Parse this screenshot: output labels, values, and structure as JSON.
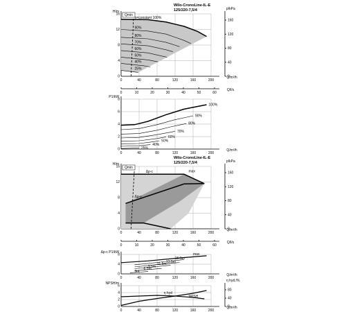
{
  "chart_data": [
    {
      "type": "line",
      "title": "Wilo-CronoLine-IL-E",
      "subtitle": "125/220-7,5/4",
      "xlabel": "Q/m³/h",
      "xlabel2": "Q/l/s",
      "ylabel": "H/m",
      "ylabel_right": "p/kPa",
      "xlim": [
        0,
        200
      ],
      "ylim": [
        0,
        16
      ],
      "xticks": [
        "0",
        "40",
        "80",
        "120",
        "160",
        "200"
      ],
      "yticks": [
        "0",
        "4",
        "8",
        "12",
        "16"
      ],
      "yticks_right": [
        "0",
        "40",
        "80",
        "120",
        "160"
      ],
      "x2ticks": [
        "0",
        "10",
        "20",
        "30",
        "40",
        "50",
        "60"
      ],
      "qmin_label": "Qmin",
      "qmin_line": [
        [
          22,
          0
        ],
        [
          28,
          16
        ]
      ],
      "region_fill": "#c8c8c8",
      "curve_color": "#000000",
      "series": [
        {
          "name": "n=constant 100%",
          "x": [
            0,
            60,
            100,
            140,
            170,
            190
          ],
          "y": [
            14.6,
            14.5,
            13.9,
            12.8,
            11.5,
            10.2
          ]
        },
        {
          "name": "90%",
          "x": [
            0,
            60,
            100,
            140,
            155
          ],
          "y": [
            12.0,
            11.6,
            10.8,
            9.2,
            8.4
          ]
        },
        {
          "name": "80%",
          "x": [
            0,
            60,
            100,
            130
          ],
          "y": [
            10.0,
            9.6,
            8.7,
            7.6
          ]
        },
        {
          "name": "70%",
          "x": [
            0,
            60,
            100,
            115
          ],
          "y": [
            8.3,
            7.8,
            6.8,
            6.3
          ]
        },
        {
          "name": "60%",
          "x": [
            0,
            60,
            90,
            102
          ],
          "y": [
            6.6,
            6.0,
            5.2,
            4.9
          ]
        },
        {
          "name": "50%",
          "x": [
            0,
            60,
            82
          ],
          "y": [
            4.9,
            4.2,
            3.7
          ]
        },
        {
          "name": "40%",
          "x": [
            0,
            50,
            65
          ],
          "y": [
            3.3,
            2.7,
            2.4
          ]
        },
        {
          "name": "25%",
          "x": [
            0,
            30,
            38
          ],
          "y": [
            1.5,
            1.1,
            1.0
          ]
        }
      ]
    },
    {
      "type": "line",
      "ylabel": "P1/kW",
      "xlabel": "Q/m³/h",
      "xlim": [
        0,
        200
      ],
      "ylim": [
        0,
        9
      ],
      "xticks": [
        "0",
        "40",
        "80",
        "120",
        "160",
        "200"
      ],
      "yticks": [
        "0",
        "2",
        "4",
        "6",
        "8"
      ],
      "series": [
        {
          "name": "100%",
          "x": [
            0,
            30,
            60,
            100,
            140,
            190
          ],
          "y": [
            4.3,
            4.4,
            5.0,
            6.2,
            7.2,
            8.0
          ]
        },
        {
          "name": "90%",
          "x": [
            0,
            40,
            80,
            120,
            160
          ],
          "y": [
            3.5,
            3.7,
            4.4,
            5.3,
            6.0
          ]
        },
        {
          "name": "80%",
          "x": [
            0,
            40,
            80,
            110,
            145
          ],
          "y": [
            2.7,
            2.8,
            3.4,
            4.0,
            4.6
          ]
        },
        {
          "name": "70%",
          "x": [
            0,
            40,
            80,
            120
          ],
          "y": [
            2.0,
            2.1,
            2.6,
            3.2
          ]
        },
        {
          "name": "60%",
          "x": [
            0,
            40,
            80,
            100
          ],
          "y": [
            1.4,
            1.5,
            1.9,
            2.2
          ]
        },
        {
          "name": "50%",
          "x": [
            0,
            40,
            70,
            85
          ],
          "y": [
            0.9,
            1.0,
            1.3,
            1.5
          ]
        },
        {
          "name": "40%",
          "x": [
            0,
            40,
            65
          ],
          "y": [
            0.5,
            0.6,
            0.8
          ]
        },
        {
          "name": "25%",
          "x": [
            0,
            20,
            40
          ],
          "y": [
            0.1,
            0.15,
            0.2
          ]
        }
      ]
    },
    {
      "type": "area",
      "title": "Wilo-CronoLine-IL-E",
      "subtitle": "125/220-7,5/4",
      "xlabel": "Q/m³/h",
      "xlabel2": "Q/l/s",
      "ylabel": "H/m",
      "ylabel_right": "p/kPa",
      "xlim": [
        0,
        200
      ],
      "ylim": [
        0,
        16
      ],
      "xticks": [
        "0",
        "40",
        "80",
        "120",
        "160",
        "200"
      ],
      "yticks": [
        "0",
        "4",
        "8",
        "12",
        "16"
      ],
      "yticks_right": [
        "0",
        "40",
        "80",
        "120",
        "160"
      ],
      "x2ticks": [
        "0",
        "10",
        "20",
        "30",
        "40",
        "50",
        "60"
      ],
      "qmin_label": "Qmin",
      "dp_c_label": "Δp-c",
      "dp_v_label": "Δp-v",
      "max_label": "max",
      "dp_c_region": [
        [
          0,
          14
        ],
        [
          140,
          14
        ],
        [
          185,
          11.6
        ],
        [
          150,
          4
        ],
        [
          110,
          0
        ],
        [
          0,
          0
        ]
      ],
      "dp_v_region": [
        [
          10,
          1.5
        ],
        [
          50,
          1.5
        ],
        [
          130,
          7
        ],
        [
          185,
          11.6
        ],
        [
          140,
          14
        ],
        [
          10,
          6.5
        ]
      ],
      "curves": {
        "dp_c_max": {
          "x": [
            0,
            140,
            185
          ],
          "y": [
            14,
            14,
            11.6
          ]
        },
        "min_line": {
          "x": [
            10,
            50,
            110
          ],
          "y": [
            1.5,
            1.5,
            0
          ]
        },
        "dp_v_max": {
          "x": [
            10,
            140,
            185
          ],
          "y": [
            6.5,
            11.5,
            11.6
          ]
        }
      }
    },
    {
      "type": "line",
      "ylabel": "Δp-c P1/kW",
      "xlabel": "Q/m³/h",
      "xlim": [
        0,
        200
      ],
      "ylim": [
        0,
        9
      ],
      "xticks": [
        "0",
        "40",
        "80",
        "120",
        "160",
        "200"
      ],
      "yticks": [
        "0",
        "4",
        "8"
      ],
      "annotations": [
        "max",
        "15.5m",
        "13.5m",
        "11.5m",
        "9.5m",
        "6.5m",
        "3m"
      ],
      "series": [
        {
          "name": "max",
          "x": [
            0,
            60,
            120,
            190
          ],
          "y": [
            5.2,
            6.0,
            7.2,
            8.4
          ]
        },
        {
          "name": "15.5m",
          "x": [
            30,
            80,
            140
          ],
          "y": [
            4.2,
            5.3,
            6.6
          ]
        },
        {
          "name": "13.5m",
          "x": [
            30,
            80,
            130
          ],
          "y": [
            3.2,
            4.3,
            5.3
          ]
        },
        {
          "name": "11.5m",
          "x": [
            30,
            70,
            110
          ],
          "y": [
            2.4,
            3.2,
            4.0
          ]
        },
        {
          "name": "6.5m",
          "x": [
            30,
            60,
            90
          ],
          "y": [
            1.4,
            2.0,
            2.5
          ]
        },
        {
          "name": "3m",
          "x": [
            20,
            40,
            60
          ],
          "y": [
            0.5,
            0.8,
            1.1
          ]
        }
      ]
    },
    {
      "type": "line",
      "ylabel": "NPSH/m",
      "ylabel_right": "η hyd./%",
      "xlabel": "Q/m³/h",
      "xlim": [
        0,
        200
      ],
      "ylim": [
        0,
        6
      ],
      "xticks": [
        "0",
        "40",
        "80",
        "120",
        "160",
        "200"
      ],
      "yticks": [
        "0",
        "2",
        "4",
        "6"
      ],
      "yticks_right": [
        "0",
        "40",
        "80"
      ],
      "series": [
        {
          "name": "η hyd",
          "x": [
            0,
            40,
            80,
            120,
            160,
            185
          ],
          "y": [
            2.8,
            3.0,
            3.2,
            3.0,
            2.6,
            2.2
          ]
        },
        {
          "name": "NPSH",
          "x": [
            0,
            40,
            80,
            120,
            160,
            190
          ],
          "y": [
            0.3,
            1.5,
            2.3,
            3.0,
            3.8,
            4.6
          ]
        }
      ]
    }
  ]
}
